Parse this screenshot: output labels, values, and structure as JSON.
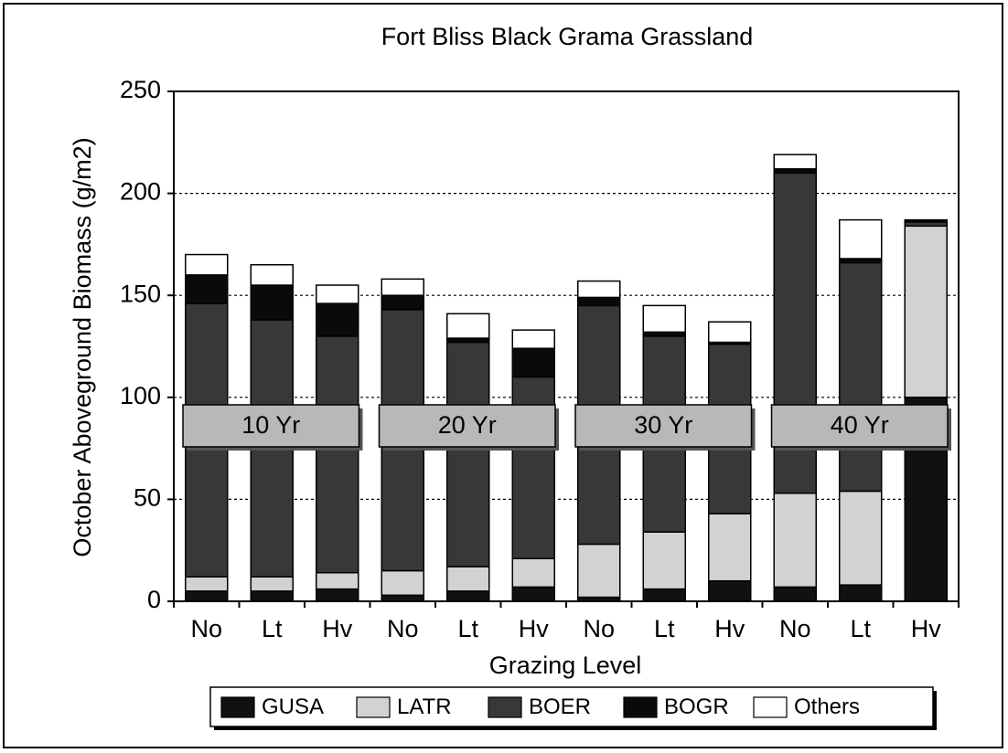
{
  "chart_data": {
    "type": "stacked_bar",
    "title": "Fort Bliss Black Grama Grassland",
    "y_label": "October Aboveground Biomass (g/m2)",
    "x_label": "Grazing Level",
    "categories": [
      "No",
      "Lt",
      "Hv",
      "No",
      "Lt",
      "Hv",
      "No",
      "Lt",
      "Hv",
      "No",
      "Lt",
      "Hv"
    ],
    "annotations": [
      "10 Yr",
      "20 Yr",
      "30 Yr",
      "40 Yr"
    ],
    "series": [
      {
        "name": "GUSA",
        "color": "#111111",
        "values": [
          5,
          5,
          6,
          3,
          5,
          7,
          2,
          6,
          10,
          7,
          8,
          100
        ]
      },
      {
        "name": "LATR",
        "color": "#d2d2d2",
        "values": [
          7,
          7,
          8,
          12,
          12,
          14,
          26,
          28,
          33,
          46,
          46,
          84
        ]
      },
      {
        "name": "BOER",
        "color": "#383838",
        "values": [
          134,
          126,
          116,
          128,
          110,
          89,
          117,
          96,
          83,
          157,
          112,
          2
        ]
      },
      {
        "name": "BOGR",
        "color": "#0a0a0a",
        "values": [
          14,
          17,
          16,
          7,
          2,
          14,
          4,
          2,
          1,
          2,
          2,
          1
        ]
      },
      {
        "name": "Others",
        "color": "#ffffff",
        "values": [
          10,
          10,
          9,
          8,
          12,
          9,
          8,
          13,
          10,
          7,
          19,
          0
        ]
      }
    ],
    "ylim": [
      0,
      250
    ],
    "yticks": [
      0,
      50,
      100,
      150,
      200,
      250
    ],
    "grid": true,
    "legend": "bottom"
  }
}
